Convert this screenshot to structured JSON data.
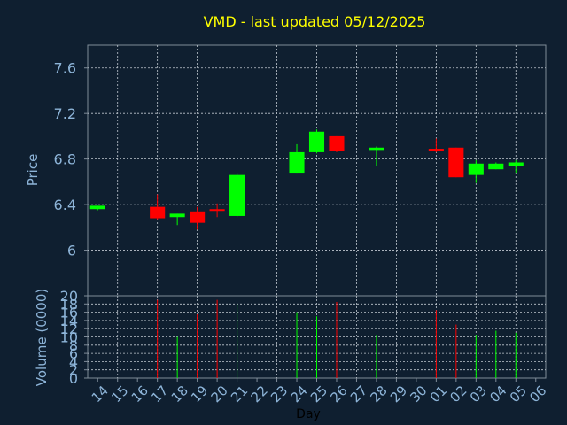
{
  "chart_data": {
    "type": "candlestick",
    "title": "VMD - last updated 05/12/2025",
    "xlabel": "Day",
    "price_panel": {
      "ylabel": "Price",
      "ylim": [
        5.6,
        7.8
      ],
      "yticks": [
        "6",
        "6.4",
        "6.8",
        "7.2",
        "7.6"
      ],
      "ytick_values": [
        6.0,
        6.4,
        6.8,
        7.2,
        7.6
      ]
    },
    "volume_panel": {
      "ylabel": "Volume (0000)",
      "ylim": [
        0,
        20
      ],
      "yticks": [
        "0",
        "2",
        "4",
        "6",
        "8",
        "10",
        "12",
        "14",
        "16",
        "18",
        "20"
      ],
      "ytick_values": [
        0,
        2,
        4,
        6,
        8,
        10,
        12,
        14,
        16,
        18,
        20
      ]
    },
    "x_ticks": [
      "14",
      "15",
      "16",
      "17",
      "18",
      "19",
      "20",
      "21",
      "22",
      "23",
      "24",
      "25",
      "26",
      "27",
      "28",
      "29",
      "30",
      "01",
      "02",
      "03",
      "04",
      "05",
      "06"
    ],
    "x_gridlines_at": [
      1,
      3,
      5,
      7,
      9,
      11,
      13,
      15,
      17,
      19,
      21
    ],
    "candles": [
      {
        "day": "14",
        "open": 6.36,
        "high": 6.39,
        "low": 6.35,
        "close": 6.39,
        "volume": 0
      },
      {
        "day": "17",
        "open": 6.38,
        "high": 6.49,
        "low": 6.27,
        "close": 6.28,
        "volume": 19
      },
      {
        "day": "18",
        "open": 6.29,
        "high": 6.32,
        "low": 6.22,
        "close": 6.32,
        "volume": 10
      },
      {
        "day": "19",
        "open": 6.34,
        "high": 6.38,
        "low": 6.18,
        "close": 6.24,
        "volume": 15.5
      },
      {
        "day": "20",
        "open": 6.36,
        "high": 6.41,
        "low": 6.29,
        "close": 6.35,
        "volume": 19
      },
      {
        "day": "21",
        "open": 6.3,
        "high": 6.68,
        "low": 6.29,
        "close": 6.66,
        "volume": 18
      },
      {
        "day": "24",
        "open": 6.68,
        "high": 6.93,
        "low": 6.68,
        "close": 6.86,
        "volume": 16
      },
      {
        "day": "25",
        "open": 6.86,
        "high": 7.06,
        "low": 6.85,
        "close": 7.04,
        "volume": 15
      },
      {
        "day": "26",
        "open": 7.0,
        "high": 7.0,
        "low": 6.86,
        "close": 6.87,
        "volume": 18.5
      },
      {
        "day": "28",
        "open": 6.88,
        "high": 6.91,
        "low": 6.74,
        "close": 6.9,
        "volume": 10.5
      },
      {
        "day": "01",
        "open": 6.89,
        "high": 6.98,
        "low": 6.86,
        "close": 6.87,
        "volume": 16.5
      },
      {
        "day": "02",
        "open": 6.9,
        "high": 6.9,
        "low": 6.64,
        "close": 6.64,
        "volume": 13
      },
      {
        "day": "03",
        "open": 6.66,
        "high": 6.79,
        "low": 6.59,
        "close": 6.76,
        "volume": 10.5
      },
      {
        "day": "04",
        "open": 6.71,
        "high": 6.77,
        "low": 6.71,
        "close": 6.76,
        "volume": 11.5
      },
      {
        "day": "05",
        "open": 6.74,
        "high": 6.79,
        "low": 6.68,
        "close": 6.77,
        "volume": 11
      }
    ],
    "colors": {
      "background": "#0f1f30",
      "up": "#00ff00",
      "down": "#ff0000",
      "title": "#ffff00",
      "axis_text": "#8db4d8",
      "frame": "#7f8c99",
      "grid": "#c0c8d0"
    },
    "grid": true
  }
}
